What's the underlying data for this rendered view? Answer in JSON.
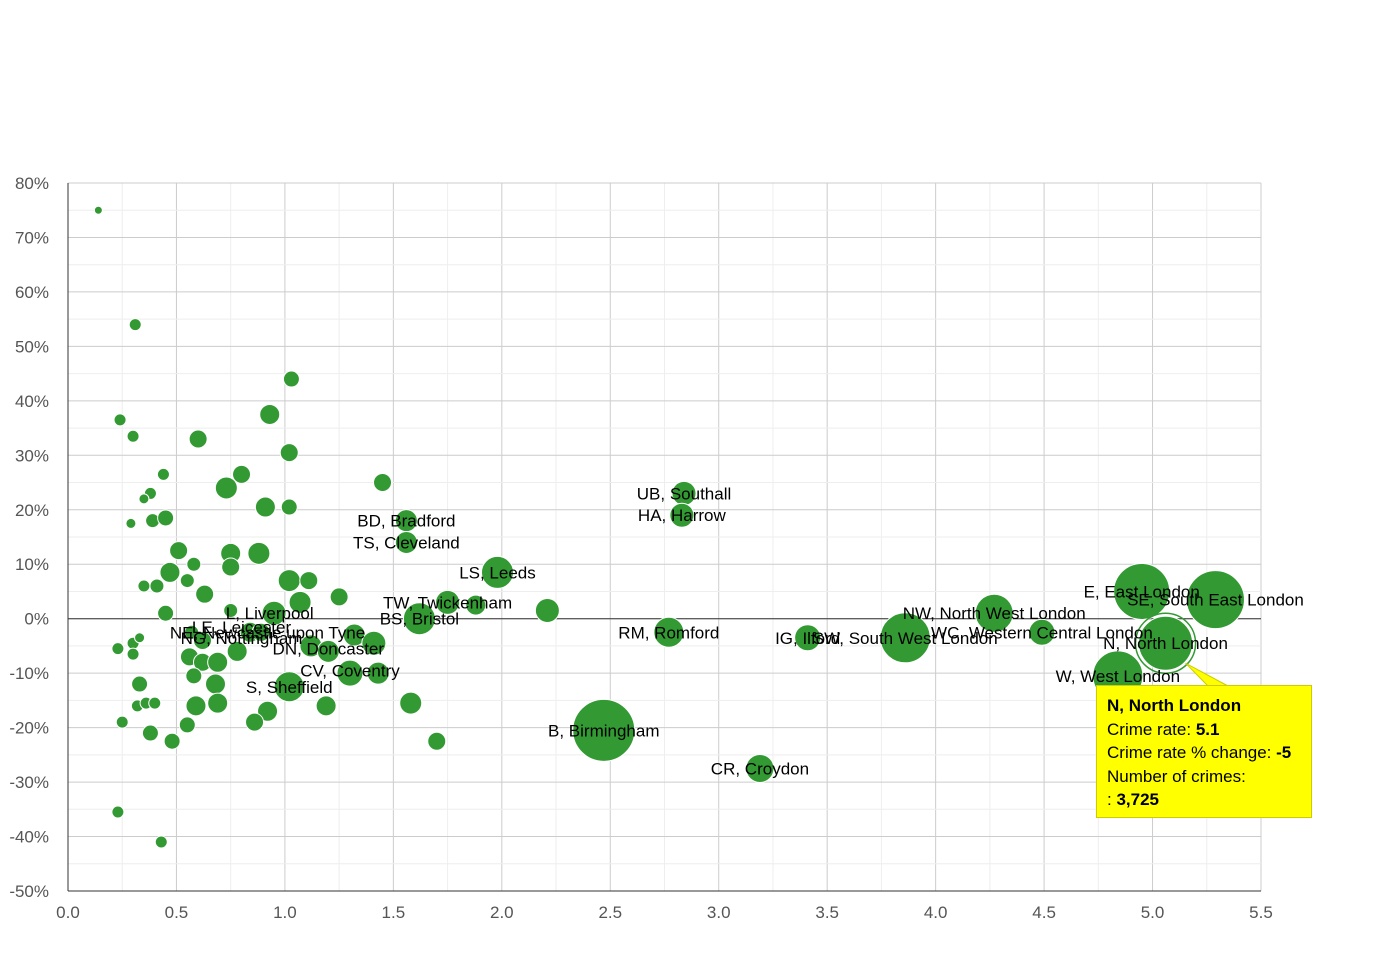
{
  "chart_data": {
    "type": "scatter",
    "xlim": [
      0,
      5.5
    ],
    "ylim": [
      -50,
      80
    ],
    "x_ticks": [
      0,
      0.5,
      1,
      1.5,
      2,
      2.5,
      3,
      3.5,
      4,
      4.5,
      5,
      5.5
    ],
    "x_tick_labels": [
      "0.0",
      "0.5",
      "1.0",
      "1.5",
      "2.0",
      "2.5",
      "3.0",
      "3.5",
      "4.0",
      "4.5",
      "5.0",
      "5.5"
    ],
    "y_ticks": [
      80,
      70,
      60,
      50,
      40,
      30,
      20,
      10,
      0,
      -10,
      -20,
      -30,
      -40,
      -50
    ],
    "y_tick_labels": [
      "80%",
      "70%",
      "60%",
      "50%",
      "40%",
      "30%",
      "20%",
      "10%",
      "0%",
      "-10%",
      "-20%",
      "-30%",
      "-40%",
      "-50%"
    ],
    "grid": true,
    "bubble_color": "#339933",
    "points": [
      {
        "x": 0.14,
        "y": 75,
        "size": 4
      },
      {
        "x": 0.31,
        "y": 54,
        "size": 6
      },
      {
        "x": 0.24,
        "y": 36.5,
        "size": 6
      },
      {
        "x": 0.3,
        "y": 33.5,
        "size": 6
      },
      {
        "x": 0.44,
        "y": 26.5,
        "size": 6
      },
      {
        "x": 0.38,
        "y": 23,
        "size": 6
      },
      {
        "x": 0.35,
        "y": 22,
        "size": 5
      },
      {
        "x": 0.29,
        "y": 17.5,
        "size": 5
      },
      {
        "x": 0.39,
        "y": 18,
        "size": 7
      },
      {
        "x": 0.45,
        "y": 18.5,
        "size": 8
      },
      {
        "x": 0.6,
        "y": 33,
        "size": 9
      },
      {
        "x": 0.73,
        "y": 24,
        "size": 11
      },
      {
        "x": 0.8,
        "y": 26.5,
        "size": 9
      },
      {
        "x": 0.93,
        "y": 37.5,
        "size": 10
      },
      {
        "x": 1.03,
        "y": 44,
        "size": 8
      },
      {
        "x": 1.02,
        "y": 30.5,
        "size": 9
      },
      {
        "x": 0.91,
        "y": 20.5,
        "size": 10
      },
      {
        "x": 1.02,
        "y": 20.5,
        "size": 8
      },
      {
        "x": 1.45,
        "y": 25,
        "size": 9
      },
      {
        "x": 0.51,
        "y": 12.5,
        "size": 9
      },
      {
        "x": 0.58,
        "y": 10,
        "size": 7
      },
      {
        "x": 0.75,
        "y": 12,
        "size": 10
      },
      {
        "x": 0.75,
        "y": 9.5,
        "size": 9
      },
      {
        "x": 0.88,
        "y": 12,
        "size": 11
      },
      {
        "x": 0.47,
        "y": 8.5,
        "size": 10
      },
      {
        "x": 0.35,
        "y": 6,
        "size": 6
      },
      {
        "x": 0.41,
        "y": 6,
        "size": 7
      },
      {
        "x": 0.55,
        "y": 7,
        "size": 7
      },
      {
        "x": 0.63,
        "y": 4.5,
        "size": 9
      },
      {
        "x": 1.02,
        "y": 7,
        "size": 11
      },
      {
        "x": 1.11,
        "y": 7,
        "size": 9
      },
      {
        "x": 1.25,
        "y": 4,
        "size": 9
      },
      {
        "x": 1.07,
        "y": 3,
        "size": 11
      },
      {
        "x": 0.45,
        "y": 1,
        "size": 8
      },
      {
        "x": 0.75,
        "y": 1.5,
        "size": 7
      },
      {
        "x": 0.95,
        "y": 1,
        "size": 12
      },
      {
        "x": 0.23,
        "y": -5.5,
        "size": 6
      },
      {
        "x": 0.3,
        "y": -4.5,
        "size": 6
      },
      {
        "x": 0.33,
        "y": -3.5,
        "size": 5
      },
      {
        "x": 0.3,
        "y": -6.5,
        "size": 6
      },
      {
        "x": 0.57,
        "y": -2.5,
        "size": 7
      },
      {
        "x": 0.62,
        "y": -4,
        "size": 9
      },
      {
        "x": 0.56,
        "y": -7,
        "size": 9
      },
      {
        "x": 0.62,
        "y": -8,
        "size": 9
      },
      {
        "x": 0.69,
        "y": -8,
        "size": 10
      },
      {
        "x": 0.78,
        "y": -6,
        "size": 10
      },
      {
        "x": 0.84,
        "y": -2.5,
        "size": 10
      },
      {
        "x": 0.89,
        "y": -2.5,
        "size": 9
      },
      {
        "x": 1.12,
        "y": -5,
        "size": 11
      },
      {
        "x": 1.2,
        "y": -6,
        "size": 11
      },
      {
        "x": 1.32,
        "y": -3,
        "size": 11
      },
      {
        "x": 1.41,
        "y": -4.5,
        "size": 12
      },
      {
        "x": 0.58,
        "y": -10.5,
        "size": 8
      },
      {
        "x": 0.33,
        "y": -12,
        "size": 8
      },
      {
        "x": 0.68,
        "y": -12,
        "size": 10
      },
      {
        "x": 0.32,
        "y": -16,
        "size": 6
      },
      {
        "x": 0.36,
        "y": -15.5,
        "size": 6
      },
      {
        "x": 0.4,
        "y": -15.5,
        "size": 6
      },
      {
        "x": 0.59,
        "y": -16,
        "size": 10
      },
      {
        "x": 0.69,
        "y": -15.5,
        "size": 10
      },
      {
        "x": 1.02,
        "y": -12.5,
        "size": 15
      },
      {
        "x": 1.3,
        "y": -10,
        "size": 13
      },
      {
        "x": 1.43,
        "y": -10,
        "size": 11
      },
      {
        "x": 0.92,
        "y": -17,
        "size": 10
      },
      {
        "x": 1.19,
        "y": -16,
        "size": 10
      },
      {
        "x": 1.58,
        "y": -15.5,
        "size": 11
      },
      {
        "x": 0.25,
        "y": -19,
        "size": 6
      },
      {
        "x": 0.55,
        "y": -19.5,
        "size": 8
      },
      {
        "x": 0.86,
        "y": -19,
        "size": 9
      },
      {
        "x": 0.38,
        "y": -21,
        "size": 8
      },
      {
        "x": 0.48,
        "y": -22.5,
        "size": 8
      },
      {
        "x": 1.7,
        "y": -22.5,
        "size": 9
      },
      {
        "x": 0.23,
        "y": -35.5,
        "size": 6
      },
      {
        "x": 0.43,
        "y": -41,
        "size": 6
      },
      {
        "x": 1.56,
        "y": 18,
        "size": 11
      },
      {
        "x": 1.56,
        "y": 14,
        "size": 11
      },
      {
        "x": 1.98,
        "y": 8.5,
        "size": 16
      },
      {
        "x": 2.21,
        "y": 1.5,
        "size": 12
      },
      {
        "x": 1.88,
        "y": 2.5,
        "size": 10
      },
      {
        "x": 1.75,
        "y": 3,
        "size": 12
      },
      {
        "x": 1.62,
        "y": 0,
        "size": 16
      },
      {
        "x": 2.84,
        "y": 23,
        "size": 12
      },
      {
        "x": 2.83,
        "y": 19,
        "size": 12
      },
      {
        "x": 2.77,
        "y": -2.5,
        "size": 15
      },
      {
        "x": 2.47,
        "y": -20.5,
        "size": 31
      },
      {
        "x": 3.19,
        "y": -27.5,
        "size": 14
      },
      {
        "x": 3.41,
        "y": -3.5,
        "size": 13
      },
      {
        "x": 3.86,
        "y": -3.5,
        "size": 25
      },
      {
        "x": 4.27,
        "y": 1,
        "size": 19
      },
      {
        "x": 4.49,
        "y": -2.5,
        "size": 13
      },
      {
        "x": 4.95,
        "y": 5,
        "size": 28
      },
      {
        "x": 5.29,
        "y": 3.5,
        "size": 29
      },
      {
        "x": 5.06,
        "y": -4.5,
        "size": 27
      },
      {
        "x": 4.84,
        "y": -10.5,
        "size": 25
      }
    ],
    "labels": [
      {
        "text": "UB, Southall",
        "x": 2.84,
        "y": 23
      },
      {
        "text": "HA, Harrow",
        "x": 2.83,
        "y": 19
      },
      {
        "text": "BD, Bradford",
        "x": 1.56,
        "y": 18
      },
      {
        "text": "TS, Cleveland",
        "x": 1.56,
        "y": 14
      },
      {
        "text": "LS, Leeds",
        "x": 1.98,
        "y": 8.5
      },
      {
        "text": "TW, Twickenham",
        "x": 1.75,
        "y": 3
      },
      {
        "text": "BS, Bristol",
        "x": 1.62,
        "y": 0
      },
      {
        "text": "RM, Romford",
        "x": 2.77,
        "y": -2.5
      },
      {
        "text": "IG, Ilford",
        "x": 3.41,
        "y": -3.5
      },
      {
        "text": "SW, South West London",
        "x": 3.86,
        "y": -3.5
      },
      {
        "text": "NW, North West London",
        "x": 4.27,
        "y": 1
      },
      {
        "text": "WC, Western Central London",
        "x": 4.49,
        "y": -2.5
      },
      {
        "text": "E, East London",
        "x": 4.95,
        "y": 5
      },
      {
        "text": "SE, South East London",
        "x": 5.29,
        "y": 3.5
      },
      {
        "text": "N, North London",
        "x": 5.06,
        "y": -4.5
      },
      {
        "text": "W, West London",
        "x": 4.84,
        "y": -10.5
      },
      {
        "text": "B, Birmingham",
        "x": 2.47,
        "y": -20.5
      },
      {
        "text": "CR, Croydon",
        "x": 3.19,
        "y": -27.5
      },
      {
        "text": "L, Liverpool",
        "x": 0.93,
        "y": 1
      },
      {
        "text": "LE, Leicester",
        "x": 0.8,
        "y": -1.5
      },
      {
        "text": "NE, Newcastle upon Tyne",
        "x": 0.92,
        "y": -2.5
      },
      {
        "text": "NG, Nottingham",
        "x": 0.8,
        "y": -3.5
      },
      {
        "text": "DN, Doncaster",
        "x": 1.2,
        "y": -5.5
      },
      {
        "text": "CV, Coventry",
        "x": 1.3,
        "y": -9.5
      },
      {
        "text": "S, Sheffield",
        "x": 1.02,
        "y": -12.5
      }
    ],
    "highlighted": {
      "x": 5.06,
      "y": -4.5
    }
  },
  "tooltip": {
    "title": "N, North London",
    "crime_rate_label": "Crime rate:",
    "crime_rate_value": "5.1",
    "change_label": "Crime rate % change:",
    "change_value": "-5",
    "number_label": "Number of crimes:",
    "number_prefix": ":",
    "number_value": "3,725"
  }
}
